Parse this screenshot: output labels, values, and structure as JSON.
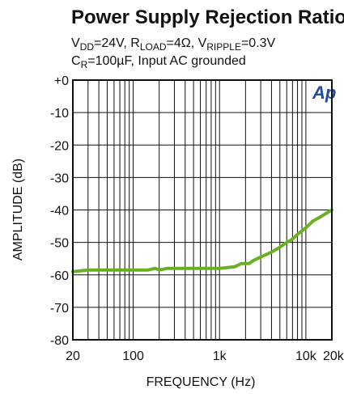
{
  "header": {
    "title": "Power Supply Rejection Ratio",
    "conditions_line1": {
      "vdd_sym": "V",
      "vdd_sub": "DD",
      "vdd_val": "=24V, ",
      "rload_sym": "R",
      "rload_sub": "LOAD",
      "rload_val": "=4Ω, ",
      "vripple_sym": "V",
      "vripple_sub": "RIPPLE",
      "vripple_val": "=0.3V"
    },
    "conditions_line2": {
      "cr_sym": "C",
      "cr_sub": "R",
      "cr_val": "=100µF, Input AC grounded"
    }
  },
  "logo_text": "Ap",
  "chart_data": {
    "type": "line",
    "xlabel": "FREQUENCY (Hz)",
    "ylabel": "AMPLITUDE (dB)",
    "x_scale": "log",
    "xlim": [
      20,
      20000
    ],
    "ylim": [
      -80,
      0
    ],
    "grid": true,
    "x_ticks": [
      {
        "value": 20,
        "label": "20"
      },
      {
        "value": 100,
        "label": "100"
      },
      {
        "value": 1000,
        "label": "1k"
      },
      {
        "value": 10000,
        "label": "10k"
      },
      {
        "value": 20000,
        "label": "20k"
      }
    ],
    "y_ticks": [
      {
        "value": 0,
        "label": "+0"
      },
      {
        "value": -10,
        "label": "-10"
      },
      {
        "value": -20,
        "label": "-20"
      },
      {
        "value": -30,
        "label": "-30"
      },
      {
        "value": -40,
        "label": "-40"
      },
      {
        "value": -50,
        "label": "-50"
      },
      {
        "value": -60,
        "label": "-60"
      },
      {
        "value": -70,
        "label": "-70"
      },
      {
        "value": -80,
        "label": "-80"
      }
    ],
    "series": [
      {
        "color": "#6ab023",
        "x": [
          20,
          30,
          50,
          100,
          150,
          180,
          200,
          250,
          500,
          1000,
          1500,
          1800,
          2200,
          2500,
          3000,
          4000,
          5000,
          6000,
          7000,
          8000,
          10000,
          12000,
          15000,
          20000
        ],
        "y": [
          -59,
          -58.5,
          -58.5,
          -58.5,
          -58.5,
          -58,
          -58.5,
          -58,
          -58,
          -58,
          -57.5,
          -56.5,
          -56.5,
          -55.5,
          -54.5,
          -53,
          -51.5,
          -50,
          -49,
          -47.5,
          -45.5,
          -43.5,
          -42,
          -40
        ]
      }
    ]
  }
}
